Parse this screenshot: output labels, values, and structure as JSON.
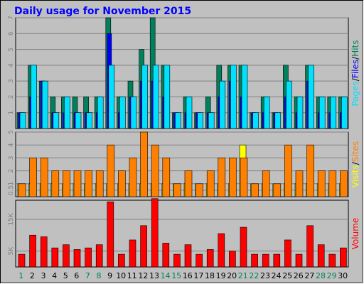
{
  "colors": {
    "background": "#c0c0c0",
    "title": "#0000ff",
    "hits": "#00805c",
    "files": "#0000ff",
    "pages": "#00e0ff",
    "visits": "#ffff00",
    "sites": "#ff8000",
    "volume": "#ff0000",
    "weekday_label": "#000000",
    "weekend_label": "#00805c",
    "grid": "#808080"
  },
  "chart_data": {
    "type": "bar",
    "title": "Daily usage for November 2015",
    "days": [
      "1",
      "2",
      "3",
      "4",
      "5",
      "6",
      "7",
      "8",
      "9",
      "10",
      "11",
      "12",
      "13",
      "14",
      "15",
      "16",
      "17",
      "18",
      "19",
      "20",
      "21",
      "22",
      "23",
      "24",
      "25",
      "26",
      "27",
      "28",
      "29",
      "30"
    ],
    "weekend_days": [
      "1",
      "7",
      "8",
      "14",
      "15",
      "21",
      "22",
      "28",
      "29"
    ],
    "panels": [
      {
        "id": "top",
        "legend": [
          "Pages",
          "/",
          "Files",
          "/",
          "Hits"
        ],
        "y_ticks": [
          "1",
          "2",
          "3",
          "4",
          "5",
          "6",
          "7"
        ],
        "ylim": [
          0,
          7
        ],
        "series": [
          {
            "name": "Hits",
            "values": [
              1,
              4,
              3,
              2,
              2,
              2,
              2,
              2,
              7,
              2,
              3,
              5,
              7,
              4,
              1,
              2,
              1,
              2,
              4,
              4,
              4,
              1,
              2,
              1,
              4,
              2,
              4,
              2,
              2,
              2
            ]
          },
          {
            "name": "Files",
            "values": [
              1,
              2,
              3,
              1,
              1,
              1,
              1,
              1,
              6,
              1,
              2,
              3,
              3,
              2,
              1,
              1,
              1,
              1,
              2,
              3,
              2,
              1,
              1,
              1,
              2,
              1,
              3,
              1,
              1,
              1
            ]
          },
          {
            "name": "Pages",
            "values": [
              1,
              4,
              3,
              1,
              2,
              1,
              1,
              2,
              4,
              2,
              2,
              4,
              4,
              4,
              1,
              2,
              1,
              1,
              3,
              4,
              4,
              1,
              2,
              1,
              3,
              2,
              4,
              2,
              2,
              2
            ]
          }
        ]
      },
      {
        "id": "middle",
        "legend": [
          "Visits",
          "/",
          "Sites"
        ],
        "y_ticks": [
          "0.5",
          "1",
          "2",
          "3",
          "4",
          "5"
        ],
        "ylim": [
          0,
          5
        ],
        "series": [
          {
            "name": "Visits",
            "values": [
              1,
              1,
              1,
              1,
              1,
              1,
              1,
              1,
              1,
              1,
              1,
              1,
              1,
              1,
              1,
              1,
              1,
              1,
              1,
              1,
              4,
              1,
              1,
              1,
              1,
              1,
              1,
              1,
              1,
              1
            ]
          },
          {
            "name": "Sites",
            "values": [
              1,
              3,
              3,
              2,
              2,
              2,
              2,
              2,
              4,
              2,
              3,
              5,
              4,
              3,
              1,
              2,
              1,
              2,
              3,
              3,
              3,
              1,
              2,
              1,
              4,
              2,
              4,
              2,
              2,
              2
            ]
          }
        ]
      },
      {
        "id": "bottom",
        "legend": [
          "Volume"
        ],
        "y_ticks": [
          "5K",
          "15K"
        ],
        "y_tick_values": [
          5,
          15
        ],
        "ylim": [
          0,
          21
        ],
        "series": [
          {
            "name": "Volume",
            "values": [
              4,
              10,
              9.5,
              6,
              7,
              5.5,
              6,
              7,
              20.5,
              4,
              8.5,
              13,
              21.5,
              7.5,
              4,
              7,
              4,
              5.5,
              10.5,
              5,
              12.5,
              4,
              4,
              4,
              8.5,
              4,
              13,
              7,
              4,
              6
            ]
          }
        ]
      }
    ]
  }
}
